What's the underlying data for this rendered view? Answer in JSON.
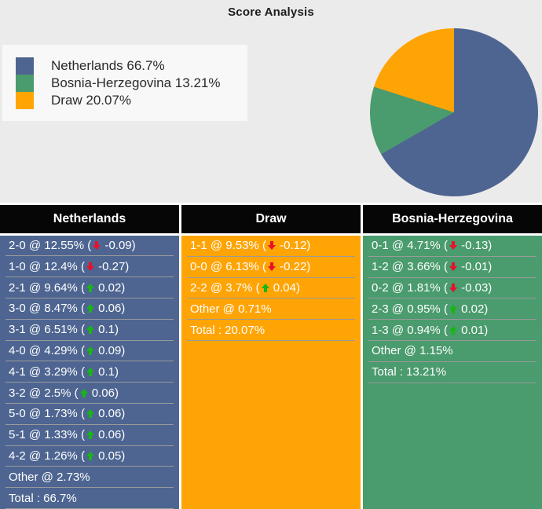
{
  "title": "Score Analysis",
  "colors": {
    "background": "#ebebeb",
    "legend_box": "#f8f8f8",
    "header_bg": "#060606",
    "header_text": "#ffffff",
    "row_text": "#ffffff",
    "separator": "#9a9a9a",
    "up_arrow": "#17b617",
    "down_arrow": "#e8112d",
    "netherlands": "#4e6591",
    "bosnia_herzegovina": "#4a9b6d",
    "draw": "#ffa405"
  },
  "chart_data": {
    "type": "pie",
    "title": "Score Analysis",
    "labels": [
      "Netherlands",
      "Bosnia-Herzegovina",
      "Draw"
    ],
    "values": [
      66.7,
      13.21,
      20.07
    ],
    "colors": [
      "#4e6591",
      "#4a9b6d",
      "#ffa405"
    ],
    "start_angle_deg": 90,
    "direction": "clockwise",
    "legend_position": "left",
    "legend_labels": [
      "Netherlands 66.7%",
      "Bosnia-Herzegovina 13.21%",
      "Draw 20.07%"
    ]
  },
  "legend": {
    "items": [
      {
        "label": "Netherlands 66.7%",
        "color": "#4e6591"
      },
      {
        "label": "Bosnia-Herzegovina 13.21%",
        "color": "#4a9b6d"
      },
      {
        "label": "Draw 20.07%",
        "color": "#ffa405"
      }
    ]
  },
  "columns": [
    {
      "header": "Netherlands",
      "color": "#4e6591",
      "rows": [
        {
          "label": "2-0 @ 12.55%",
          "trend": "down",
          "delta": "-0.09"
        },
        {
          "label": "1-0 @ 12.4%",
          "trend": "down",
          "delta": "-0.27"
        },
        {
          "label": "2-1 @ 9.64%",
          "trend": "up",
          "delta": "0.02"
        },
        {
          "label": "3-0 @ 8.47%",
          "trend": "up",
          "delta": "0.06"
        },
        {
          "label": "3-1 @ 6.51%",
          "trend": "up",
          "delta": "0.1"
        },
        {
          "label": "4-0 @ 4.29%",
          "trend": "up",
          "delta": "0.09"
        },
        {
          "label": "4-1 @ 3.29%",
          "trend": "up",
          "delta": "0.1"
        },
        {
          "label": "3-2 @ 2.5%",
          "trend": "up",
          "delta": "0.06"
        },
        {
          "label": "5-0 @ 1.73%",
          "trend": "up",
          "delta": "0.06"
        },
        {
          "label": "5-1 @ 1.33%",
          "trend": "up",
          "delta": "0.06"
        },
        {
          "label": "4-2 @ 1.26%",
          "trend": "up",
          "delta": "0.05"
        },
        {
          "label": "Other @ 2.73%"
        },
        {
          "label": "Total : 66.7%"
        }
      ]
    },
    {
      "header": "Draw",
      "color": "#ffa405",
      "rows": [
        {
          "label": "1-1 @ 9.53%",
          "trend": "down",
          "delta": "-0.12"
        },
        {
          "label": "0-0 @ 6.13%",
          "trend": "down",
          "delta": "-0.22"
        },
        {
          "label": "2-2 @ 3.7%",
          "trend": "up",
          "delta": "0.04"
        },
        {
          "label": "Other @ 0.71%"
        },
        {
          "label": "Total : 20.07%"
        }
      ]
    },
    {
      "header": "Bosnia-Herzegovina",
      "color": "#4a9b6d",
      "rows": [
        {
          "label": "0-1 @ 4.71%",
          "trend": "down",
          "delta": "-0.13"
        },
        {
          "label": "1-2 @ 3.66%",
          "trend": "down",
          "delta": "-0.01"
        },
        {
          "label": "0-2 @ 1.81%",
          "trend": "down",
          "delta": "-0.03"
        },
        {
          "label": "2-3 @ 0.95%",
          "trend": "up",
          "delta": "0.02"
        },
        {
          "label": "1-3 @ 0.94%",
          "trend": "up",
          "delta": "0.01"
        },
        {
          "label": "Other @ 1.15%"
        },
        {
          "label": "Total : 13.21%"
        }
      ]
    }
  ]
}
